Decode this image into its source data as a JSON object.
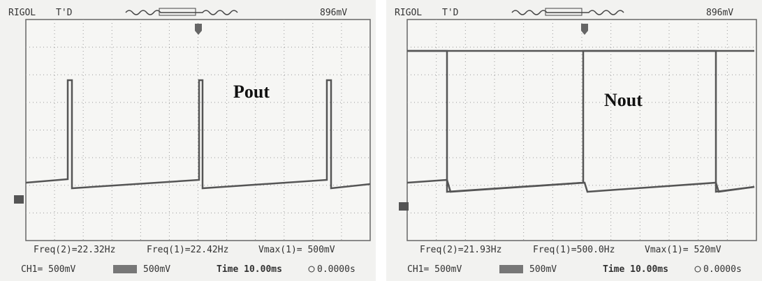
{
  "panels": [
    {
      "brand": "RIGOL",
      "status": "T'D",
      "trigger_level": "896mV",
      "label": "Pout",
      "measurements": [
        "Freq(2)=22.32Hz",
        "Freq(1)=22.42Hz",
        "Vmax(1)= 500mV"
      ],
      "ch1": "CH1= 500mV",
      "ch2": "500mV",
      "time": "Time 10.00ms",
      "offset": "0.0000s"
    },
    {
      "brand": "RIGOL",
      "status": "T'D",
      "trigger_level": "896mV",
      "label": "Nout",
      "measurements": [
        "Freq(2)=21.93Hz",
        "Freq(1)=500.0Hz",
        "Vmax(1)= 520mV"
      ],
      "ch1": "CH1= 500mV",
      "ch2": "500mV",
      "time": "Time 10.00ms",
      "offset": "0.0000s"
    }
  ]
}
